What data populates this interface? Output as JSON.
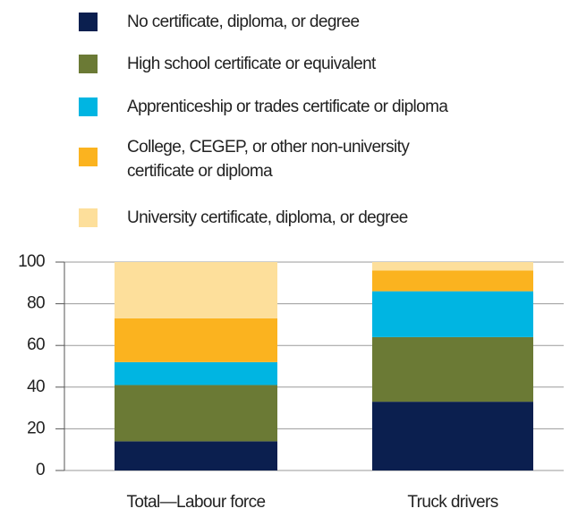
{
  "chart_data": {
    "type": "stacked_bar",
    "categories": [
      "Total—Labour force",
      "Truck drivers"
    ],
    "series": [
      {
        "name": "No certificate, diploma, or degree",
        "color": "#0b1f4f",
        "values": [
          14,
          33
        ]
      },
      {
        "name": "High school certificate or equivalent",
        "color": "#6b7a35",
        "values": [
          27,
          31
        ]
      },
      {
        "name": "Apprenticeship or trades certificate or diploma",
        "color": "#00b5e2",
        "values": [
          11,
          22
        ]
      },
      {
        "name": "College, CEGEP, or other non-university\ncertificate or diploma",
        "color": "#fbb31f",
        "values": [
          21,
          10
        ]
      },
      {
        "name": "University certificate, diploma, or degree",
        "color": "#fddf9b",
        "values": [
          27,
          4
        ]
      }
    ],
    "ylim": [
      0,
      100
    ],
    "yticks": [
      0,
      20,
      40,
      60,
      80,
      100
    ],
    "grid": true
  }
}
